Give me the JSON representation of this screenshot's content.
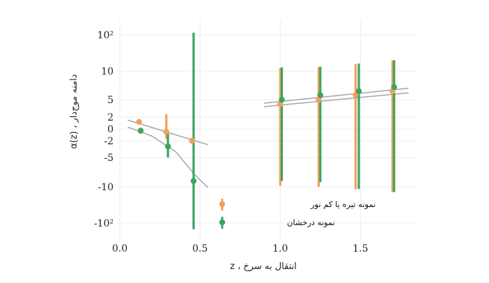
{
  "chart_data": {
    "type": "scatter",
    "xlabel": "انتقال به سرخ ، z",
    "ylabel": "دامنه موج‌دار ، α(z)",
    "xlim": [
      0.0,
      1.85
    ],
    "y_scale": "symlog",
    "y_ticks": [
      "10²",
      "10",
      "5",
      "2",
      "0",
      "-2",
      "-5",
      "-10",
      "-10²"
    ],
    "x_ticks": [
      "0.0",
      "0.5",
      "1.0",
      "1.5"
    ],
    "grid": true,
    "legend_position": "lower-middle",
    "series": [
      {
        "name": "نمونه تیره یا کم نور",
        "color": "#f59e5a",
        "points": [
          {
            "x": 0.12,
            "y": 1.2,
            "yerr_low": 0.4,
            "yerr_high": 0.4
          },
          {
            "x": 0.29,
            "y": -0.5,
            "yerr_low": 1.2,
            "yerr_high": 3.0
          },
          {
            "x": 0.45,
            "y": -2.0,
            "yerr_low": 0.3,
            "yerr_high": 0.3
          },
          {
            "x": 1.0,
            "y": 4.2,
            "yerr_low": 14,
            "yerr_high": 14
          },
          {
            "x": 1.24,
            "y": 5.0,
            "yerr_low": 15,
            "yerr_high": 15
          },
          {
            "x": 1.47,
            "y": 5.8,
            "yerr_low": 22,
            "yerr_high": 22
          },
          {
            "x": 1.7,
            "y": 6.5,
            "yerr_low": 30,
            "yerr_high": 30
          }
        ]
      },
      {
        "name": "نمونه درخشان",
        "color": "#3aa55f",
        "points": [
          {
            "x": 0.13,
            "y": -0.3,
            "yerr_low": 0.5,
            "yerr_high": 0.5
          },
          {
            "x": 0.3,
            "y": -3.0,
            "yerr_low": 2.0,
            "yerr_high": 2.2
          },
          {
            "x": 0.46,
            "y": -9.0,
            "yerr_low": 150,
            "yerr_high": 130
          },
          {
            "x": 1.01,
            "y": 5.0,
            "yerr_low": 14,
            "yerr_high": 14
          },
          {
            "x": 1.25,
            "y": 5.8,
            "yerr_low": 15,
            "yerr_high": 15
          },
          {
            "x": 1.49,
            "y": 6.5,
            "yerr_low": 22,
            "yerr_high": 22
          },
          {
            "x": 1.71,
            "y": 7.2,
            "yerr_low": 30,
            "yerr_high": 30
          }
        ]
      }
    ],
    "fit_lines": [
      {
        "series": "نمونه تیره یا کم نور",
        "x": [
          0.05,
          0.55
        ],
        "y": [
          1.5,
          -2.7
        ]
      },
      {
        "series": "نمونه درخشان",
        "curve": true,
        "x": [
          0.05,
          0.2,
          0.35,
          0.47,
          0.55
        ],
        "y": [
          0.3,
          -1.2,
          -4.0,
          -8.0,
          -12.0
        ]
      },
      {
        "series": "نمونه تیره یا کم نور",
        "x": [
          0.9,
          1.8
        ],
        "y": [
          3.8,
          6.2
        ]
      },
      {
        "series": "نمونه درخشان",
        "x": [
          0.9,
          1.8
        ],
        "y": [
          4.4,
          7.0
        ]
      }
    ]
  }
}
